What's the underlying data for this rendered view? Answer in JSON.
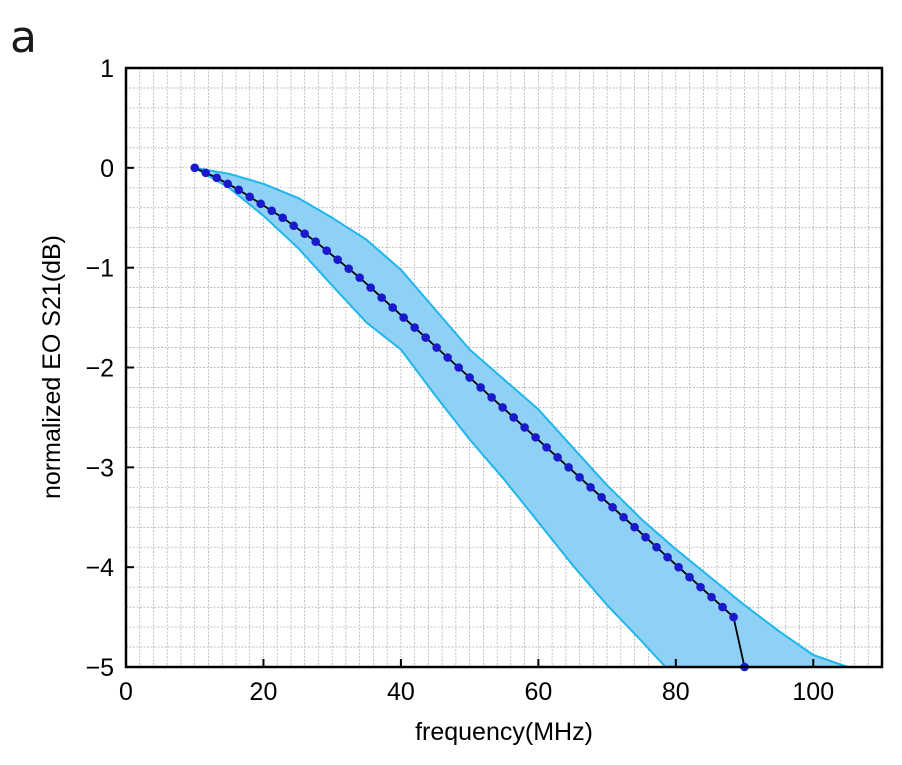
{
  "panel_label": "a",
  "colors": {
    "band_fill": "#8fd0f5",
    "band_edge": "#1fb6ea",
    "line": "#000000",
    "marker": "#1a1acc",
    "grid": "#a8a8a8",
    "axis": "#000000"
  },
  "chart_data": {
    "type": "line",
    "xlabel": "frequency(MHz)",
    "ylabel": "normalized EO S21(dB)",
    "xlim": [
      0,
      110
    ],
    "ylim": [
      -5,
      1
    ],
    "x_ticks": [
      0,
      20,
      40,
      60,
      80,
      100
    ],
    "x_tick_labels": [
      "0",
      "20",
      "40",
      "60",
      "80",
      "100"
    ],
    "y_ticks": [
      1,
      0,
      -1,
      -2,
      -3,
      -4,
      -5
    ],
    "y_tick_labels": [
      "1",
      "0",
      "−1",
      "−2",
      "−3",
      "−4",
      "−5"
    ],
    "grid": true,
    "minor_grid": {
      "x_step": 2,
      "y_step": 0.2
    },
    "series": [
      {
        "x": [
          10,
          11.6,
          13.2,
          14.8,
          16.4,
          18,
          19.6,
          21.2,
          22.8,
          24.4,
          26,
          27.6,
          29.2,
          30.8,
          32.4,
          34,
          35.6,
          37.2,
          38.8,
          40.4,
          42,
          43.6,
          45.2,
          46.8,
          48.4,
          50,
          51.6,
          53.2,
          54.8,
          56.4,
          58,
          59.6,
          61.2,
          62.8,
          64.4,
          66,
          67.6,
          69.2,
          70.8,
          72.4,
          74,
          75.6,
          77.2,
          78.8,
          80.4,
          82,
          83.6,
          85.2,
          86.8,
          88.4,
          90
        ],
        "y": [
          0,
          -0.05,
          -0.1,
          -0.16,
          -0.22,
          -0.29,
          -0.36,
          -0.43,
          -0.5,
          -0.58,
          -0.66,
          -0.74,
          -0.83,
          -0.92,
          -1.01,
          -1.1,
          -1.2,
          -1.3,
          -1.4,
          -1.5,
          -1.6,
          -1.7,
          -1.8,
          -1.9,
          -2.0,
          -2.1,
          -2.2,
          -2.3,
          -2.4,
          -2.5,
          -2.6,
          -2.7,
          -2.8,
          -2.9,
          -3.0,
          -3.1,
          -3.2,
          -3.3,
          -3.4,
          -3.5,
          -3.6,
          -3.7,
          -3.8,
          -3.9,
          -4.0,
          -4.1,
          -4.2,
          -4.3,
          -4.4,
          -4.5,
          -5.0
        ]
      }
    ],
    "band": {
      "upper": {
        "x": [
          10,
          15,
          20,
          25,
          30,
          35,
          40,
          45,
          50,
          55,
          60,
          65,
          70,
          75,
          80,
          85,
          90,
          95,
          100,
          105
        ],
        "y": [
          0,
          -0.06,
          -0.16,
          -0.3,
          -0.5,
          -0.72,
          -1.02,
          -1.42,
          -1.82,
          -2.12,
          -2.42,
          -2.8,
          -3.18,
          -3.52,
          -3.82,
          -4.1,
          -4.38,
          -4.64,
          -4.88,
          -5.0
        ]
      },
      "lower": {
        "x": [
          10,
          15,
          20,
          25,
          30,
          35,
          40,
          45,
          50,
          55,
          60,
          65,
          70,
          75,
          78.5
        ],
        "y": [
          0,
          -0.2,
          -0.48,
          -0.8,
          -1.18,
          -1.55,
          -1.82,
          -2.28,
          -2.72,
          -3.12,
          -3.55,
          -3.98,
          -4.38,
          -4.74,
          -5.0
        ]
      }
    }
  }
}
